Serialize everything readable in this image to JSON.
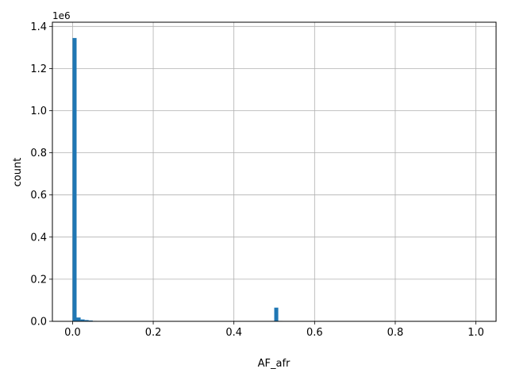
{
  "chart_data": {
    "type": "bar",
    "xlabel": "AF_afr",
    "ylabel": "count",
    "y_offset_label": "1e6",
    "xlim": [
      -0.05,
      1.05
    ],
    "ylim": [
      0,
      1.42
    ],
    "x_ticks": [
      0.0,
      0.2,
      0.4,
      0.6,
      0.8,
      1.0
    ],
    "x_tick_labels": [
      "0.0",
      "0.2",
      "0.4",
      "0.6",
      "0.8",
      "1.0"
    ],
    "y_ticks": [
      0.0,
      0.2,
      0.4,
      0.6,
      0.8,
      1.0,
      1.2,
      1.4
    ],
    "y_tick_labels": [
      "0.0",
      "0.2",
      "0.4",
      "0.6",
      "0.8",
      "1.0",
      "1.2",
      "1.4"
    ],
    "grid": true,
    "bins": 100,
    "bin_range": [
      0,
      1
    ],
    "bar_color": "#1f77b4",
    "bars": [
      {
        "x0": 0.0,
        "x1": 0.01,
        "value": 1.345
      },
      {
        "x0": 0.01,
        "x1": 0.02,
        "value": 0.018
      },
      {
        "x0": 0.02,
        "x1": 0.03,
        "value": 0.009
      },
      {
        "x0": 0.03,
        "x1": 0.04,
        "value": 0.006
      },
      {
        "x0": 0.04,
        "x1": 0.05,
        "value": 0.004
      },
      {
        "x0": 0.05,
        "x1": 0.06,
        "value": 0.002
      },
      {
        "x0": 0.06,
        "x1": 0.07,
        "value": 0.0015
      },
      {
        "x0": 0.07,
        "x1": 0.08,
        "value": 0.001
      },
      {
        "x0": 0.08,
        "x1": 0.09,
        "value": 0.0008
      },
      {
        "x0": 0.09,
        "x1": 0.1,
        "value": 0.0006
      },
      {
        "x0": 0.49,
        "x1": 0.5,
        "value": 0.002
      },
      {
        "x0": 0.5,
        "x1": 0.51,
        "value": 0.065
      },
      {
        "x0": 0.51,
        "x1": 0.52,
        "value": 0.002
      }
    ]
  }
}
